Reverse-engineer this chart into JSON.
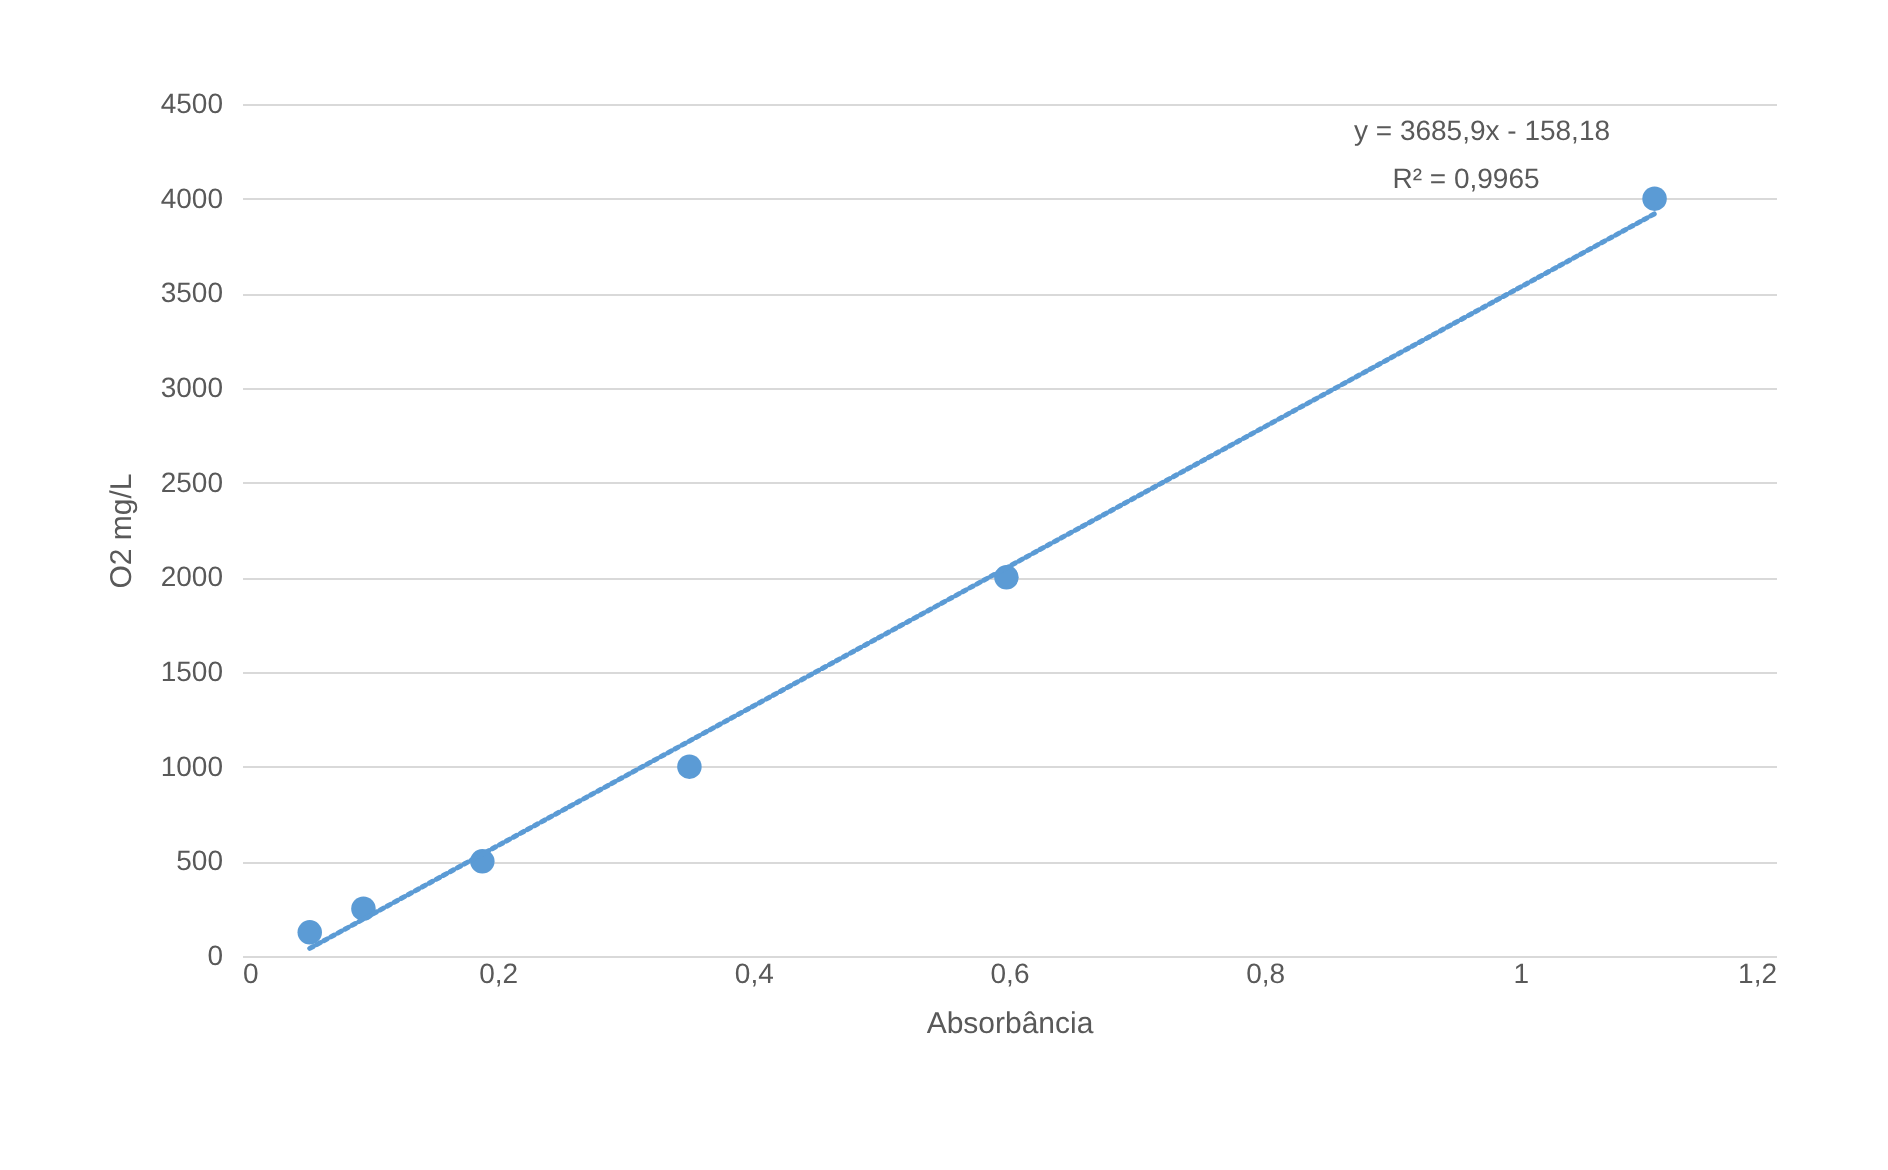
{
  "chart_data": {
    "type": "scatter",
    "xlabel": "Absorbância",
    "ylabel": "O2 mg/L",
    "annotations": [
      "y = 3685,9x - 158,18",
      "R² = 0,9965"
    ],
    "series": [
      {
        "color": "#5b9bd5",
        "x": [
          0.053,
          0.095,
          0.188,
          0.35,
          0.598,
          1.105
        ],
        "values": [
          125,
          250,
          500,
          1000,
          2000,
          4000
        ],
        "marker": "circle"
      },
      {
        "type": "line",
        "color": "#5b9bd5",
        "x": [
          0.053,
          1.105
        ],
        "values": [
          40,
          3920
        ],
        "line_style": "dotted"
      }
    ],
    "xlim": [
      0,
      1.2
    ],
    "xticks": [
      0,
      {
        "value": 0.2,
        "label": "0,2"
      },
      {
        "value": 0.4,
        "label": "0,4"
      },
      {
        "value": 0.6,
        "label": "0,6"
      },
      {
        "value": 0.8,
        "label": "0,8"
      },
      1,
      {
        "value": 1.2,
        "label": "1,2"
      }
    ],
    "ylim": [
      0,
      4500
    ],
    "yticks": [
      0,
      500,
      1000,
      1500,
      2000,
      2500,
      3000,
      3500,
      4000,
      4500
    ],
    "grid": "y",
    "legend": false
  }
}
